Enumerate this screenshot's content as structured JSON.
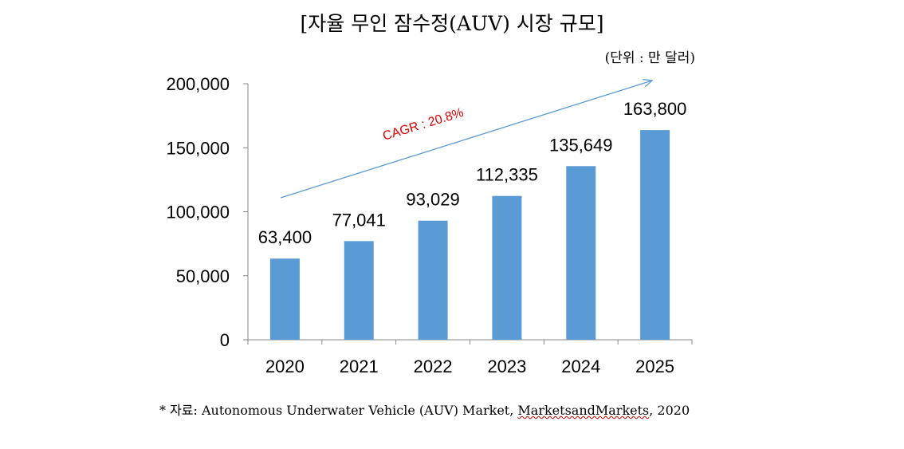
{
  "chart_data": {
    "type": "bar",
    "title": "[자율 무인 잠수정(AUV) 시장 규모]",
    "unit_label": "(단위 : 만 달러)",
    "categories": [
      "2020",
      "2021",
      "2022",
      "2023",
      "2024",
      "2025"
    ],
    "values": [
      63400,
      77041,
      93029,
      112335,
      135649,
      163800
    ],
    "value_labels": [
      "63,400",
      "77,041",
      "93,029",
      "112,335",
      "135,649",
      "163,800"
    ],
    "y_ticks": [
      "0",
      "50,000",
      "100,000",
      "150,000",
      "200,000"
    ],
    "ylim": [
      0,
      200000
    ],
    "xlabel": "",
    "ylabel": "",
    "grid": false,
    "bar_color": "#5b9bd5",
    "annotation": {
      "text": "CAGR : 20.8%",
      "color": "#e00000",
      "arrow_color": "#5b9bd5"
    }
  },
  "source": {
    "prefix": "* 자료: Autonomous Underwater Vehicle (AUV) Market, ",
    "publisher": "MarketsandMarkets",
    "suffix": ", 2020"
  }
}
